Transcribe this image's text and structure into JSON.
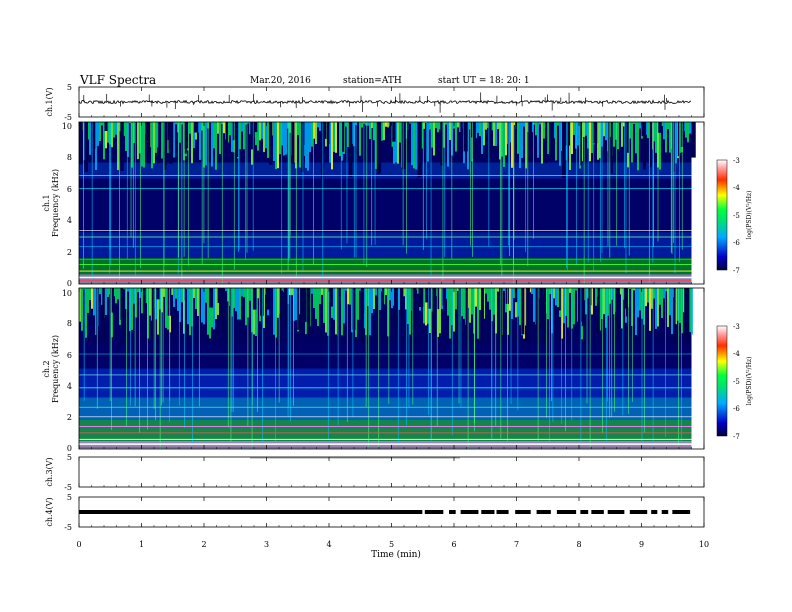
{
  "header": {
    "title": "VLF  Spectra",
    "date": "Mar.20, 2016",
    "station": "station=ATH",
    "start": "start  UT  =    18: 20: 1"
  },
  "chart_data": [
    {
      "type": "line",
      "panel": "ch1-waveform",
      "ylabel": "ch.1(V)",
      "yticks": [
        "5",
        "-5"
      ],
      "ylim": [
        -5,
        5
      ],
      "xlim": [
        0,
        10
      ],
      "trace_level_v": 0.0
    },
    {
      "type": "heatmap",
      "panel": "ch1-spectrogram",
      "ylabel": [
        "ch.1",
        "Frequency  (kHz)"
      ],
      "yticks": [
        "0",
        "2",
        "4",
        "6",
        "8",
        "10"
      ],
      "ylim": [
        0,
        10
      ],
      "xlim": [
        0,
        9.8
      ],
      "colorbar": {
        "label": "log(PSD)(V²/Hz)",
        "ticks": [
          "-3",
          "-4",
          "-5",
          "-6",
          "-7"
        ],
        "range": [
          -7,
          -3
        ]
      }
    },
    {
      "type": "heatmap",
      "panel": "ch2-spectrogram",
      "ylabel": [
        "ch.2",
        "Frequency  (kHz)"
      ],
      "yticks": [
        "0",
        "2",
        "4",
        "6",
        "8",
        "10"
      ],
      "ylim": [
        0,
        10
      ],
      "xlim": [
        0,
        9.8
      ],
      "colorbar": {
        "label": "log(PSD)(V²/Hz)",
        "ticks": [
          "-3",
          "-4",
          "-5",
          "-6",
          "-7"
        ],
        "range": [
          -7,
          -3
        ]
      }
    },
    {
      "type": "line",
      "panel": "ch3-waveform",
      "ylabel": "ch.3(V)",
      "yticks": [
        "5",
        "-5"
      ],
      "ylim": [
        -5,
        5
      ],
      "xlim": [
        0,
        10
      ],
      "trace_level_v": 0.0
    },
    {
      "type": "line",
      "panel": "ch4-waveform",
      "ylabel": "ch.4(V)",
      "yticks": [
        "5",
        "-5"
      ],
      "ylim": [
        -5,
        5
      ],
      "xlim": [
        0,
        10
      ],
      "trace_level_v": 0.0
    }
  ],
  "xaxis": {
    "label": "Time  (min)",
    "ticks": [
      "0",
      "1",
      "2",
      "3",
      "4",
      "5",
      "6",
      "7",
      "8",
      "9",
      "10"
    ]
  }
}
